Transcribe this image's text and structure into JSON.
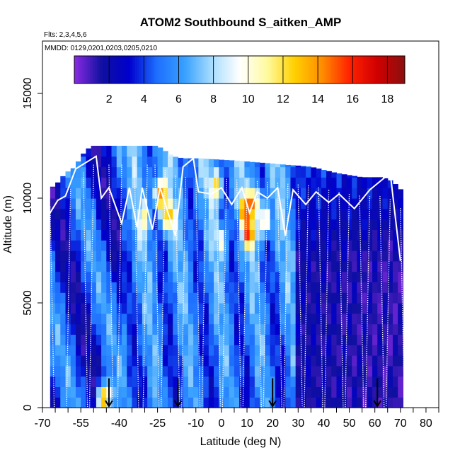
{
  "chart_data": {
    "type": "heatmap",
    "title": "ATOM2 Southbound S_aitken_AMP",
    "flights_label": "Flts: 2,3,4,5,6",
    "dates_label": "MMDD: 0129,0201,0203,0205,0210",
    "xlabel": "Latitude (deg N)",
    "ylabel": "Altitude (m)",
    "xlim": [
      -70,
      85
    ],
    "ylim": [
      0,
      17500
    ],
    "x_ticks": [
      -70,
      -55,
      -40,
      -25,
      -10,
      0,
      10,
      20,
      30,
      40,
      50,
      60,
      70,
      80
    ],
    "x_minor_step": 5,
    "y_ticks": [
      0,
      5000,
      10000,
      15000
    ],
    "colorbar": {
      "min": 0,
      "max": 19,
      "ticks": [
        2,
        4,
        6,
        8,
        10,
        12,
        14,
        16,
        18
      ],
      "colors": [
        "#8a2be2",
        "#1010a0",
        "#0000cd",
        "#1e6fff",
        "#38a0ff",
        "#a8ddff",
        "#ffffff",
        "#fffaa0",
        "#ffd000",
        "#ff8c00",
        "#ff2000",
        "#d00000",
        "#8b1010"
      ]
    },
    "grid": false,
    "data_extent": {
      "lat_range": [
        -67,
        71
      ],
      "alt_range": [
        0,
        12500
      ]
    },
    "column_tops_m": [
      [
        -67,
        10500
      ],
      [
        -65,
        10600
      ],
      [
        -61,
        11200
      ],
      [
        -57,
        11500
      ],
      [
        -55,
        12000
      ],
      [
        -51,
        12500
      ],
      [
        -45,
        12500
      ],
      [
        -35,
        12500
      ],
      [
        -25,
        12500
      ],
      [
        -19,
        12000
      ],
      [
        -15,
        11900
      ],
      [
        -9,
        11900
      ],
      [
        5,
        11800
      ],
      [
        15,
        11700
      ],
      [
        25,
        11600
      ],
      [
        35,
        11500
      ],
      [
        45,
        11200
      ],
      [
        55,
        11000
      ],
      [
        63,
        11000
      ],
      [
        67,
        10800
      ],
      [
        71,
        10300
      ]
    ],
    "hotspots": [
      {
        "lat": -24,
        "alt": 10200,
        "value": 15
      },
      {
        "lat": -21,
        "alt": 9100,
        "value": 13
      },
      {
        "lat": 9,
        "alt": 9500,
        "value": 13
      },
      {
        "lat": 11,
        "alt": 8300,
        "value": 14
      },
      {
        "lat": 13,
        "alt": 9800,
        "value": 13
      },
      {
        "lat": 17,
        "alt": 8900,
        "value": 12
      },
      {
        "lat": -45,
        "alt": 600,
        "value": 13
      },
      {
        "lat": -47,
        "alt": 300,
        "value": 12
      },
      {
        "lat": -2,
        "alt": 10600,
        "value": 11
      },
      {
        "lat": -30,
        "alt": 9000,
        "value": 9
      },
      {
        "lat": 0,
        "alt": 8000,
        "value": 9
      }
    ],
    "flight_path": [
      [
        -67,
        9300
      ],
      [
        -64,
        9900
      ],
      [
        -61,
        10100
      ],
      [
        -57,
        11400
      ],
      [
        -53,
        11700
      ],
      [
        -49,
        12000
      ],
      [
        -47,
        10000
      ],
      [
        -44,
        10500
      ],
      [
        -39,
        8800
      ],
      [
        -36,
        10500
      ],
      [
        -33,
        8600
      ],
      [
        -31,
        10500
      ],
      [
        -27,
        8500
      ],
      [
        -24,
        10500
      ],
      [
        -18,
        8200
      ],
      [
        -15,
        11500
      ],
      [
        -11,
        11900
      ],
      [
        -9,
        10300
      ],
      [
        -4,
        10200
      ],
      [
        0,
        10500
      ],
      [
        4,
        9700
      ],
      [
        8,
        10500
      ],
      [
        11,
        9300
      ],
      [
        14,
        10300
      ],
      [
        18,
        10000
      ],
      [
        22,
        10500
      ],
      [
        25,
        8200
      ],
      [
        28,
        10400
      ],
      [
        33,
        9700
      ],
      [
        37,
        10300
      ],
      [
        42,
        9800
      ],
      [
        46,
        10200
      ],
      [
        52,
        9500
      ],
      [
        58,
        10400
      ],
      [
        66,
        11200
      ],
      [
        70,
        7000
      ]
    ],
    "profile_lats": [
      -67,
      -59,
      -54,
      -50,
      -44,
      -39,
      -34,
      -29,
      -26,
      -22,
      -18,
      -14,
      -10,
      -6,
      -2,
      2,
      6,
      10,
      14,
      18,
      22,
      26,
      30,
      34,
      38,
      42,
      46,
      50,
      54,
      58,
      62,
      66,
      70
    ],
    "arrow_lats": [
      -44,
      -17,
      20,
      61
    ]
  }
}
